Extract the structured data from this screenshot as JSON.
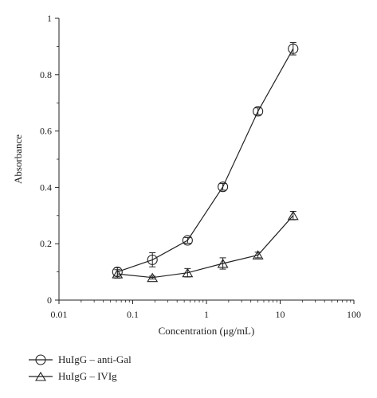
{
  "chart_data": {
    "type": "line",
    "title": "",
    "xlabel": "Concentration (μg/mL)",
    "ylabel": "Absorbance",
    "x_scale": "log",
    "xlim": [
      0.01,
      100
    ],
    "ylim": [
      0,
      1
    ],
    "x_ticks": [
      {
        "value": 0.01,
        "label": "0.01"
      },
      {
        "value": 0.1,
        "label": "0.1"
      },
      {
        "value": 1,
        "label": "1"
      },
      {
        "value": 10,
        "label": "10"
      },
      {
        "value": 100,
        "label": "100"
      }
    ],
    "y_ticks": [
      {
        "value": 0,
        "label": "0"
      },
      {
        "value": 0.2,
        "label": "0.2"
      },
      {
        "value": 0.4,
        "label": "0.4"
      },
      {
        "value": 0.6,
        "label": "0.6"
      },
      {
        "value": 0.8,
        "label": "0.8"
      },
      {
        "value": 1,
        "label": "1"
      }
    ],
    "grid": false,
    "legend_position": "bottom-left",
    "series": [
      {
        "name": "HuIgG – anti-Gal",
        "marker": "circle",
        "points": [
          {
            "x": 0.062,
            "y": 0.1,
            "err": 0.015
          },
          {
            "x": 0.185,
            "y": 0.143,
            "err": 0.025
          },
          {
            "x": 0.555,
            "y": 0.212,
            "err": 0.01
          },
          {
            "x": 1.67,
            "y": 0.402,
            "err": 0.012
          },
          {
            "x": 5.0,
            "y": 0.67,
            "err": 0.012
          },
          {
            "x": 15.0,
            "y": 0.892,
            "err": 0.022
          }
        ]
      },
      {
        "name": "HuIgG – IVIg",
        "marker": "triangle",
        "points": [
          {
            "x": 0.062,
            "y": 0.093,
            "err": 0.015
          },
          {
            "x": 0.185,
            "y": 0.08,
            "err": 0.005
          },
          {
            "x": 0.555,
            "y": 0.097,
            "err": 0.015
          },
          {
            "x": 1.67,
            "y": 0.13,
            "err": 0.02
          },
          {
            "x": 5.0,
            "y": 0.16,
            "err": 0.01
          },
          {
            "x": 15.0,
            "y": 0.3,
            "err": 0.015
          }
        ]
      }
    ]
  }
}
